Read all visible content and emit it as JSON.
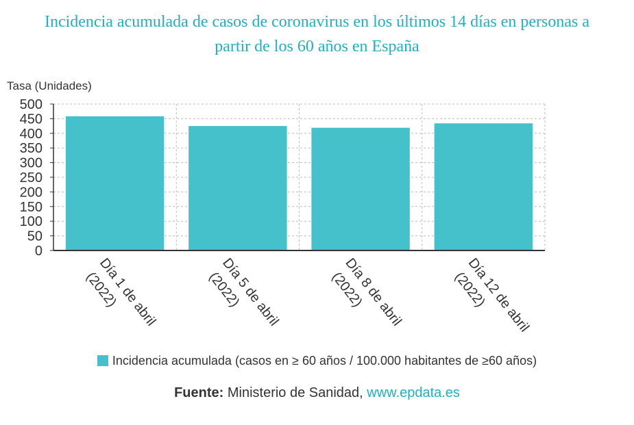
{
  "colors": {
    "title": "#1fb1c0",
    "bar": "#44c1ca",
    "grid": "#bbbbbb",
    "axis": "#333333",
    "text": "#333333",
    "link": "#1fb1c0"
  },
  "chart_data": {
    "type": "bar",
    "title_lines": [
      "Incidencia acumulada de casos de coronavirus en los últimos 14 días en personas a",
      "partir de los 60 años en España"
    ],
    "ylabel": "Tasa (Unidades)",
    "xlabel": "",
    "ylim": [
      0,
      500
    ],
    "yticks": [
      0,
      50,
      100,
      150,
      200,
      250,
      300,
      350,
      400,
      450,
      500
    ],
    "categories": [
      [
        "Día 1 de abril",
        "(2022)"
      ],
      [
        "Día 5 de abril",
        "(2022)"
      ],
      [
        "Día 8 de abril",
        "(2022)"
      ],
      [
        "Día 12 de abril",
        "(2022)"
      ]
    ],
    "series": [
      {
        "name": "Incidencia acumulada (casos en ≥ 60 años / 100.000 habitantes de ≥60 años)",
        "values": [
          458,
          425,
          419,
          434
        ]
      }
    ],
    "grid": true,
    "legend_position": "bottom"
  },
  "source": {
    "label": "Fuente:",
    "text": " Ministerio de Sanidad, ",
    "link_text": "www.epdata.es"
  }
}
